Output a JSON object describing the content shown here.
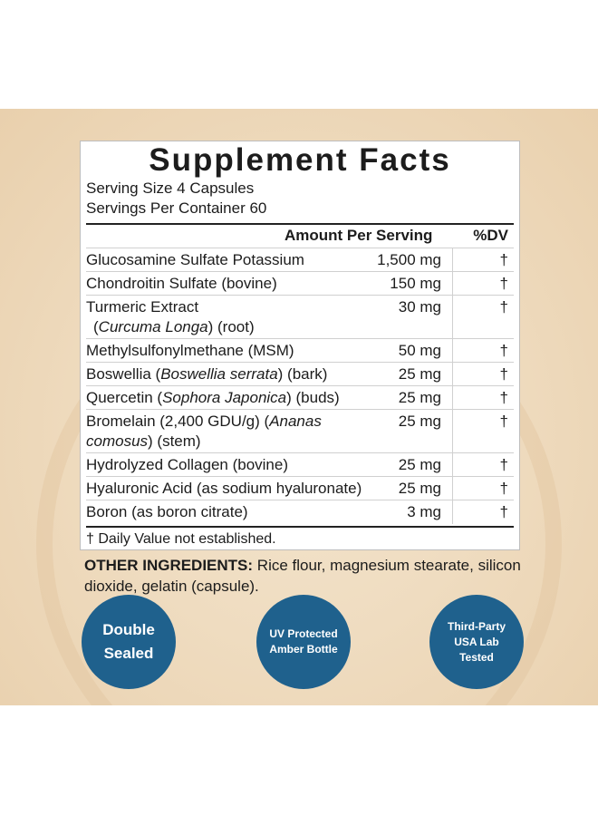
{
  "facts": {
    "title": "Supplement Facts",
    "serving_size": "Serving Size 4 Capsules",
    "servings_per_container": "Servings Per Container 60",
    "amount_header": "Amount Per Serving",
    "dv_header": "%DV",
    "rows": [
      {
        "name": "Glucosamine Sulfate Potassium",
        "amount": "1,500 mg",
        "dv": "†"
      },
      {
        "name": "Chondroitin Sulfate (bovine)",
        "amount": "150 mg",
        "dv": "†"
      },
      {
        "name": "Turmeric Extract",
        "name2_italic": "Curcuma Longa",
        "name2_pre": "(",
        "name2_post": ") (root)",
        "amount": "30 mg",
        "dv": "†"
      },
      {
        "name": "Methylsulfonylmethane (MSM)",
        "amount": "50 mg",
        "dv": "†"
      },
      {
        "name_pre": "Boswellia (",
        "name_italic": "Boswellia serrata",
        "name_post": ") (bark)",
        "amount": "25 mg",
        "dv": "†"
      },
      {
        "name_pre": "Quercetin (",
        "name_italic": "Sophora Japonica",
        "name_post": ") (buds)",
        "amount": "25 mg",
        "dv": "†"
      },
      {
        "name_pre": "Bromelain (2,400 GDU/g) (",
        "name_italic": "Ananas",
        "line2_italic": "comosus",
        "line2_post": ") (stem)",
        "amount": "25 mg",
        "dv": "†"
      },
      {
        "name": "Hydrolyzed Collagen (bovine)",
        "amount": "25 mg",
        "dv": "†"
      },
      {
        "name": "Hyaluronic Acid (as sodium hyaluronate)",
        "amount": "25 mg",
        "dv": "†"
      },
      {
        "name": "Boron (as boron citrate)",
        "amount": "3 mg",
        "dv": "†"
      }
    ],
    "footnote": "† Daily Value not established."
  },
  "other_ingredients": {
    "label": "OTHER INGREDIENTS:",
    "text": " Rice flour, magnesium stearate, silicon dioxide, gelatin (capsule)."
  },
  "badges": [
    {
      "text": "Double\nSealed"
    },
    {
      "text": "UV Protected\nAmber Bottle"
    },
    {
      "text": "Third-Party\nUSA Lab\nTested"
    }
  ],
  "colors": {
    "badge": "#1f618d",
    "panel_bg": "#efdcc0"
  }
}
